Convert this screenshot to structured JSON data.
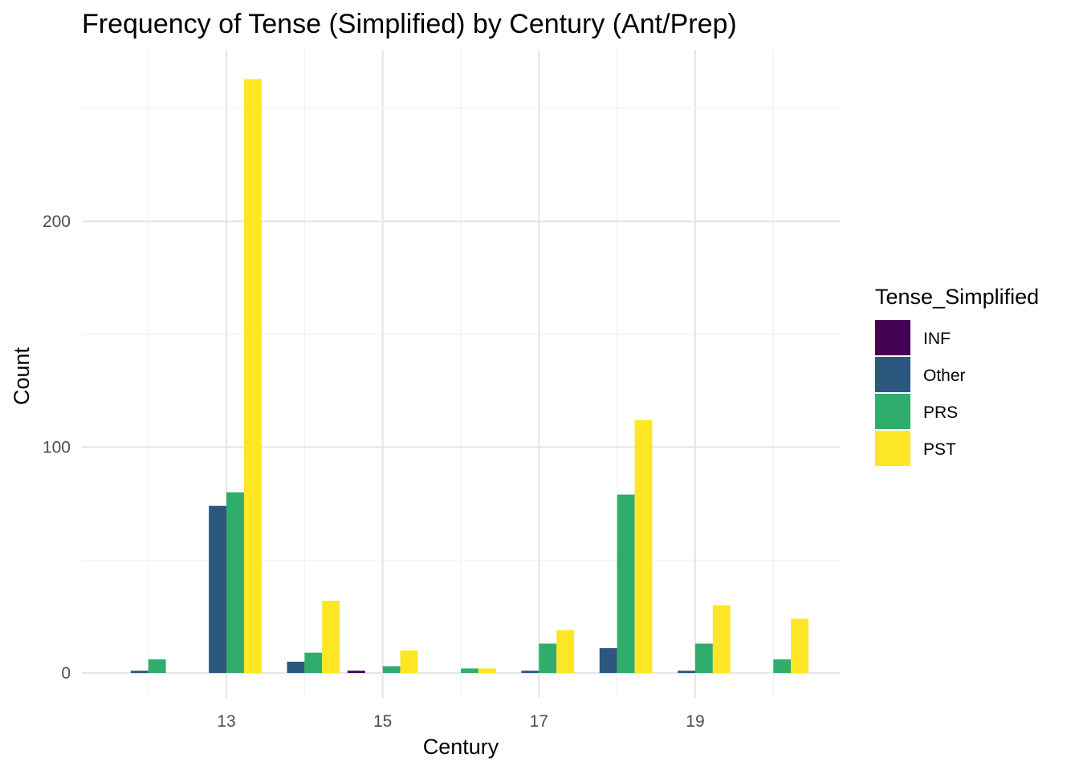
{
  "chart_data": {
    "type": "bar",
    "title": "Frequency of Tense (Simplified) by Century (Ant/Prep)",
    "xlabel": "Century",
    "ylabel": "Count",
    "x_ticks": [
      13,
      15,
      17,
      19
    ],
    "y_ticks": [
      0,
      100,
      200
    ],
    "xlim": [
      11.15,
      20.85
    ],
    "ylim": [
      -11,
      276
    ],
    "grid": true,
    "legend_position": "right",
    "legend_title": "Tense_Simplified",
    "categories": [
      12,
      13,
      14,
      15,
      16,
      17,
      18,
      19,
      20
    ],
    "series": [
      {
        "name": "INF",
        "color": "#440154",
        "values": [
          0,
          0,
          0,
          1,
          0,
          0,
          0,
          0,
          0
        ]
      },
      {
        "name": "Other",
        "color": "#2c577f",
        "values": [
          1,
          74,
          5,
          0,
          0,
          1,
          11,
          1,
          0
        ]
      },
      {
        "name": "PRS",
        "color": "#30ad6c",
        "values": [
          6,
          80,
          9,
          3,
          2,
          13,
          79,
          13,
          6
        ]
      },
      {
        "name": "PST",
        "color": "#fde725",
        "values": [
          0,
          263,
          32,
          10,
          2,
          19,
          112,
          30,
          24
        ]
      }
    ]
  }
}
